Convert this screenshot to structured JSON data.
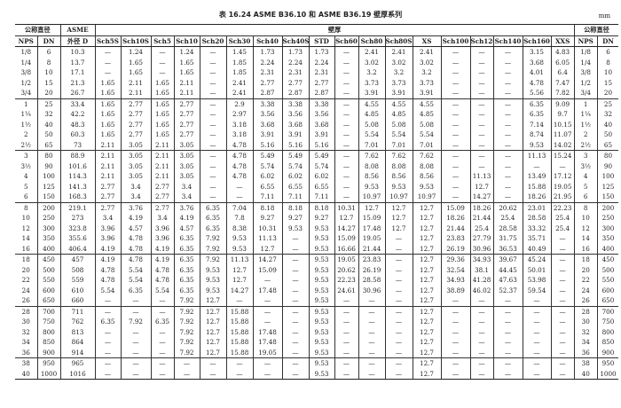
{
  "title": "表 16.24  ASME B36.10 和 ASME B36.19 壁厚系列",
  "unit": "mm",
  "header": {
    "nominal": "公称直径",
    "asme_od": "ASME",
    "asme_od2": "外径 D",
    "wall": "壁厚",
    "columns": [
      "NPS",
      "DN",
      "",
      "Sch5S",
      "Sch10S",
      "Sch5",
      "Sch10",
      "Sch20",
      "Sch30",
      "Sch40",
      "Sch40S",
      "STD",
      "Sch60",
      "Sch80",
      "Sch80S",
      "XS",
      "Sch100",
      "Sch120",
      "Sch140",
      "Sch160",
      "XXS",
      "NPS",
      "DN"
    ]
  },
  "group_starts": [
    5,
    10,
    15,
    20,
    25,
    30
  ],
  "rows": [
    [
      "1/8",
      "6",
      "10.3",
      "—",
      "1.24",
      "—",
      "1.24",
      "—",
      "1.45",
      "1.73",
      "1.73",
      "1.73",
      "—",
      "2.41",
      "2.41",
      "2.41",
      "—",
      "—",
      "—",
      "3.15",
      "4.83",
      "1/8",
      "6"
    ],
    [
      "1/4",
      "8",
      "13.7",
      "—",
      "1.65",
      "—",
      "1.65",
      "—",
      "1.85",
      "2.24",
      "2.24",
      "2.24",
      "—",
      "3.02",
      "3.02",
      "3.02",
      "—",
      "—",
      "—",
      "3.68",
      "6.05",
      "1/4",
      "8"
    ],
    [
      "3/8",
      "10",
      "17.1",
      "—",
      "1.65",
      "—",
      "1.65",
      "—",
      "1.85",
      "2.31",
      "2.31",
      "2.31",
      "—",
      "3.2",
      "3.2",
      "3.2",
      "—",
      "—",
      "—",
      "4.01",
      "6.4",
      "3/8",
      "10"
    ],
    [
      "1/2",
      "15",
      "21.3",
      "1.65",
      "2.11",
      "1.65",
      "2.11",
      "—",
      "2.41",
      "2.77",
      "2.77",
      "2.77",
      "—",
      "3.73",
      "3.73",
      "3.73",
      "—",
      "—",
      "—",
      "4.78",
      "7.47",
      "1/2",
      "15"
    ],
    [
      "3/4",
      "20",
      "26.7",
      "1.65",
      "2.11",
      "1.65",
      "2.11",
      "—",
      "2.41",
      "2.87",
      "2.87",
      "2.87",
      "—",
      "3.91",
      "3.91",
      "3.91",
      "—",
      "—",
      "—",
      "5.56",
      "7.82",
      "3/4",
      "20"
    ],
    [
      "1",
      "25",
      "33.4",
      "1.65",
      "2.77",
      "1.65",
      "2.77",
      "—",
      "2.9",
      "3.38",
      "3.38",
      "3.38",
      "—",
      "4.55",
      "4.55",
      "4.55",
      "—",
      "—",
      "—",
      "6.35",
      "9.09",
      "1",
      "25"
    ],
    [
      "1¼",
      "32",
      "42.2",
      "1.65",
      "2.77",
      "1.65",
      "2.77",
      "—",
      "2.97",
      "3.56",
      "3.56",
      "3.56",
      "—",
      "4.85",
      "4.85",
      "4.85",
      "—",
      "—",
      "—",
      "6.35",
      "9.7",
      "1¼",
      "32"
    ],
    [
      "1½",
      "40",
      "48.3",
      "1.65",
      "2.77",
      "1.65",
      "2.77",
      "—",
      "3.18",
      "3.68",
      "3.68",
      "3.68",
      "—",
      "5.08",
      "5.08",
      "5.08",
      "—",
      "—",
      "—",
      "7.14",
      "10.15",
      "1½",
      "40"
    ],
    [
      "2",
      "50",
      "60.3",
      "1.65",
      "2.77",
      "1.65",
      "2.77",
      "—",
      "3.18",
      "3.91",
      "3.91",
      "3.91",
      "—",
      "5.54",
      "5.54",
      "5.54",
      "—",
      "—",
      "—",
      "8.74",
      "11.07",
      "2",
      "50"
    ],
    [
      "2½",
      "65",
      "73",
      "2.11",
      "3.05",
      "2.11",
      "3.05",
      "—",
      "4.78",
      "5.16",
      "5.16",
      "5.16",
      "—",
      "7.01",
      "7.01",
      "7.01",
      "—",
      "—",
      "—",
      "9.53",
      "14.02",
      "2½",
      "65"
    ],
    [
      "3",
      "80",
      "88.9",
      "2.11",
      "3.05",
      "2.11",
      "3.05",
      "—",
      "4.78",
      "5.49",
      "5.49",
      "5.49",
      "—",
      "7.62",
      "7.62",
      "7.62",
      "—",
      "—",
      "—",
      "11.13",
      "15.24",
      "3",
      "80"
    ],
    [
      "3½",
      "90",
      "101.6",
      "2.11",
      "3.05",
      "2.11",
      "3.05",
      "—",
      "4.78",
      "5.74",
      "5.74",
      "5.74",
      "—",
      "8.08",
      "8.08",
      "8.08",
      "—",
      "—",
      "—",
      "—",
      "—",
      "3½",
      "90"
    ],
    [
      "4",
      "100",
      "114.3",
      "2.11",
      "3.05",
      "2.11",
      "3.05",
      "—",
      "4.78",
      "6.02",
      "6.02",
      "6.02",
      "—",
      "8.56",
      "8.56",
      "8.56",
      "—",
      "11.13",
      "—",
      "13.49",
      "17.12",
      "4",
      "100"
    ],
    [
      "5",
      "125",
      "141.3",
      "2.77",
      "3.4",
      "2.77",
      "3.4",
      "—",
      "—",
      "6.55",
      "6.55",
      "6.55",
      "—",
      "9.53",
      "9.53",
      "9.53",
      "—",
      "12.7",
      "—",
      "15.88",
      "19.05",
      "5",
      "125"
    ],
    [
      "6",
      "150",
      "168.3",
      "2.77",
      "3.4",
      "2.77",
      "3.4",
      "—",
      "—",
      "7.11",
      "7.11",
      "7.11",
      "—",
      "10.97",
      "10.97",
      "10.97",
      "—",
      "14.27",
      "—",
      "18.26",
      "21.95",
      "6",
      "150"
    ],
    [
      "8",
      "200",
      "219.1",
      "2.77",
      "3.76",
      "2.77",
      "3.76",
      "6.35",
      "7.04",
      "8.18",
      "8.18",
      "8.18",
      "10.31",
      "12.7",
      "12.7",
      "12.7",
      "15.09",
      "18.26",
      "20.62",
      "23.01",
      "22.23",
      "8",
      "200"
    ],
    [
      "10",
      "250",
      "273",
      "3.4",
      "4.19",
      "3.4",
      "4.19",
      "6.35",
      "7.8",
      "9.27",
      "9.27",
      "9.27",
      "12.7",
      "15.09",
      "12.7",
      "12.7",
      "18.26",
      "21.44",
      "25.4",
      "28.58",
      "25.4",
      "10",
      "250"
    ],
    [
      "12",
      "300",
      "323.8",
      "3.96",
      "4.57",
      "3.96",
      "4.57",
      "6.35",
      "8.38",
      "10.31",
      "9.53",
      "9.53",
      "14.27",
      "17.48",
      "12.7",
      "12.7",
      "21.44",
      "25.4",
      "28.58",
      "33.32",
      "25.4",
      "12",
      "300"
    ],
    [
      "14",
      "350",
      "355.6",
      "3.96",
      "4.78",
      "3.96",
      "6.35",
      "7.92",
      "9.53",
      "11.13",
      "—",
      "9.53",
      "15.09",
      "19.05",
      "—",
      "12.7",
      "23.83",
      "27.79",
      "31.75",
      "35.71",
      "—",
      "14",
      "350"
    ],
    [
      "16",
      "400",
      "406.4",
      "4.19",
      "4.78",
      "4.19",
      "6.35",
      "7.92",
      "9.53",
      "12.7",
      "—",
      "9.53",
      "16.66",
      "21.44",
      "—",
      "12.7",
      "26.19",
      "30.96",
      "36.53",
      "40.49",
      "—",
      "16",
      "400"
    ],
    [
      "18",
      "450",
      "457",
      "4.19",
      "4.78",
      "4.19",
      "6.35",
      "7.92",
      "11.13",
      "14.27",
      "—",
      "9.53",
      "19.05",
      "23.83",
      "—",
      "12.7",
      "29.36",
      "34.93",
      "39.67",
      "45.24",
      "—",
      "18",
      "450"
    ],
    [
      "20",
      "500",
      "508",
      "4.78",
      "5.54",
      "4.78",
      "6.35",
      "9.53",
      "12.7",
      "15.09",
      "—",
      "9.53",
      "20.62",
      "26.19",
      "—",
      "12.7",
      "32.54",
      "38.1",
      "44.45",
      "50.01",
      "—",
      "20",
      "500"
    ],
    [
      "22",
      "550",
      "559",
      "4.78",
      "5.54",
      "4.78",
      "6.35",
      "9.53",
      "12.7",
      "—",
      "—",
      "9.53",
      "22.23",
      "28.58",
      "—",
      "12.7",
      "34.93",
      "41.28",
      "47.63",
      "53.98",
      "—",
      "22",
      "550"
    ],
    [
      "24",
      "600",
      "610",
      "5.54",
      "6.35",
      "5.54",
      "6.35",
      "9.53",
      "14.27",
      "17.48",
      "—",
      "9.53",
      "24.61",
      "30.96",
      "—",
      "12.7",
      "38.89",
      "46.02",
      "52.37",
      "59.54",
      "—",
      "24",
      "600"
    ],
    [
      "26",
      "650",
      "660",
      "—",
      "—",
      "—",
      "7.92",
      "12.7",
      "—",
      "—",
      "—",
      "9.53",
      "—",
      "—",
      "—",
      "12.7",
      "—",
      "—",
      "—",
      "—",
      "—",
      "26",
      "650"
    ],
    [
      "28",
      "700",
      "711",
      "—",
      "—",
      "—",
      "7.92",
      "12.7",
      "15.88",
      "—",
      "—",
      "9.53",
      "—",
      "—",
      "—",
      "12.7",
      "—",
      "—",
      "—",
      "—",
      "—",
      "28",
      "700"
    ],
    [
      "30",
      "750",
      "762",
      "6.35",
      "7.92",
      "6.35",
      "7.92",
      "12.7",
      "15.88",
      "—",
      "—",
      "9.53",
      "—",
      "—",
      "—",
      "12.7",
      "—",
      "—",
      "—",
      "—",
      "—",
      "30",
      "750"
    ],
    [
      "32",
      "800",
      "813",
      "—",
      "—",
      "—",
      "7.92",
      "12.7",
      "15.88",
      "17.48",
      "—",
      "9.53",
      "—",
      "—",
      "—",
      "12.7",
      "—",
      "—",
      "—",
      "—",
      "—",
      "32",
      "800"
    ],
    [
      "34",
      "850",
      "864",
      "—",
      "—",
      "—",
      "7.92",
      "12.7",
      "15.88",
      "17.48",
      "—",
      "9.53",
      "—",
      "—",
      "—",
      "12.7",
      "—",
      "—",
      "—",
      "—",
      "—",
      "34",
      "850"
    ],
    [
      "36",
      "900",
      "914",
      "—",
      "—",
      "—",
      "7.92",
      "12.7",
      "15.88",
      "19.05",
      "—",
      "9.53",
      "—",
      "—",
      "—",
      "12.7",
      "—",
      "—",
      "—",
      "—",
      "—",
      "36",
      "900"
    ],
    [
      "38",
      "950",
      "965",
      "—",
      "—",
      "—",
      "—",
      "—",
      "—",
      "—",
      "—",
      "9.53",
      "—",
      "—",
      "—",
      "12.7",
      "—",
      "—",
      "—",
      "—",
      "—",
      "38",
      "950"
    ],
    [
      "40",
      "1000",
      "1016",
      "—",
      "—",
      "—",
      "—",
      "—",
      "—",
      "—",
      "—",
      "9.53",
      "—",
      "—",
      "—",
      "12.7",
      "—",
      "—",
      "—",
      "—",
      "—",
      "40",
      "1000"
    ]
  ]
}
